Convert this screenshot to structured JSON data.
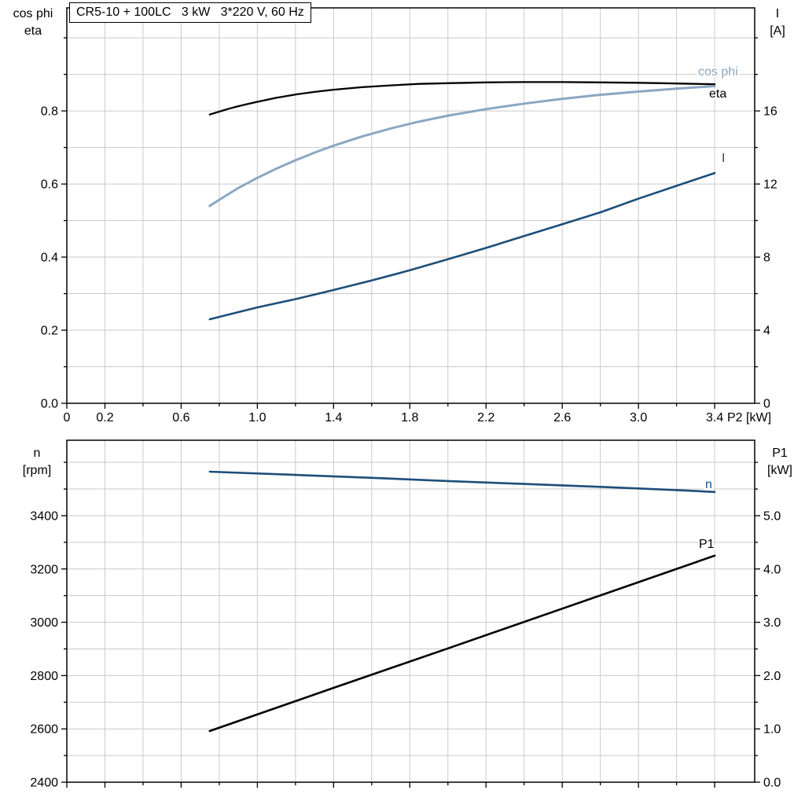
{
  "title_box": {
    "label": "CR5-10 + 100LC   3 kW   3*220 V, 60 Hz"
  },
  "colors": {
    "eta": "#000000",
    "cos_phi": "#8ba7c2",
    "current": "#1d4e79",
    "speed": "#1d4e79",
    "p1": "#000000",
    "grid": "#cacaca",
    "axis": "#000000"
  },
  "chart_data": [
    {
      "type": "line",
      "id": "electrical",
      "title": "CR5-10 + 100LC 3 kW 3*220 V, 60 Hz",
      "x_axis": {
        "label": "P2 [kW]",
        "range": [
          0,
          3.61
        ],
        "minor_step": 0.2,
        "show_labels": true,
        "ticks": [
          {
            "v": 0,
            "t": "0"
          },
          {
            "v": 0.2,
            "t": "0.2"
          },
          {
            "v": 0.6,
            "t": "0.6"
          },
          {
            "v": 1.0,
            "t": "1.0"
          },
          {
            "v": 1.4,
            "t": "1.4"
          },
          {
            "v": 1.8,
            "t": "1.8"
          },
          {
            "v": 2.2,
            "t": "2.2"
          },
          {
            "v": 2.6,
            "t": "2.6"
          },
          {
            "v": 3.0,
            "t": "3.0"
          },
          {
            "v": 3.4,
            "t": "3.4"
          }
        ]
      },
      "y_left": {
        "title_lines": [
          "cos phi",
          "eta"
        ],
        "range": [
          0,
          1.082
        ],
        "minor_step": 0.1,
        "ticks": [
          {
            "v": 0.0,
            "t": "0.0"
          },
          {
            "v": 0.2,
            "t": "0.2"
          },
          {
            "v": 0.4,
            "t": "0.4"
          },
          {
            "v": 0.6,
            "t": "0.6"
          },
          {
            "v": 0.8,
            "t": "0.8"
          }
        ]
      },
      "y_right": {
        "title_lines": [
          "I",
          "[A]"
        ],
        "range": [
          0,
          21.64
        ],
        "minor_step": 2,
        "ticks": [
          {
            "v": 0,
            "t": "0"
          },
          {
            "v": 4,
            "t": "4"
          },
          {
            "v": 8,
            "t": "8"
          },
          {
            "v": 12,
            "t": "12"
          },
          {
            "v": 16,
            "t": "16"
          }
        ]
      },
      "series": [
        {
          "name": "eta",
          "axis": "left",
          "color": "#000000",
          "width": 2.3,
          "label": {
            "text": "eta",
            "x": 902,
            "y": 124,
            "color": "#000000"
          },
          "points": [
            [
              0.75,
              0.79
            ],
            [
              0.8,
              0.798
            ],
            [
              0.85,
              0.806
            ],
            [
              0.9,
              0.813
            ],
            [
              0.95,
              0.819
            ],
            [
              1.0,
              0.825
            ],
            [
              1.1,
              0.836
            ],
            [
              1.2,
              0.845
            ],
            [
              1.3,
              0.852
            ],
            [
              1.4,
              0.858
            ],
            [
              1.55,
              0.865
            ],
            [
              1.7,
              0.87
            ],
            [
              1.85,
              0.874
            ],
            [
              2.0,
              0.876
            ],
            [
              2.2,
              0.878
            ],
            [
              2.4,
              0.879
            ],
            [
              2.6,
              0.879
            ],
            [
              2.8,
              0.878
            ],
            [
              3.0,
              0.877
            ],
            [
              3.2,
              0.875
            ],
            [
              3.4,
              0.873
            ]
          ]
        },
        {
          "name": "cos phi",
          "axis": "left",
          "color": "#8ba7c2",
          "width": 3,
          "label": {
            "text": "cos phi",
            "x": 888,
            "y": 96,
            "color": "#8ba7c2"
          },
          "points": [
            [
              0.75,
              0.54
            ],
            [
              0.8,
              0.557
            ],
            [
              0.85,
              0.573
            ],
            [
              0.9,
              0.589
            ],
            [
              0.95,
              0.603
            ],
            [
              1.0,
              0.617
            ],
            [
              1.1,
              0.642
            ],
            [
              1.2,
              0.665
            ],
            [
              1.3,
              0.686
            ],
            [
              1.4,
              0.705
            ],
            [
              1.55,
              0.73
            ],
            [
              1.7,
              0.752
            ],
            [
              1.85,
              0.771
            ],
            [
              2.0,
              0.787
            ],
            [
              2.2,
              0.805
            ],
            [
              2.4,
              0.82
            ],
            [
              2.6,
              0.833
            ],
            [
              2.8,
              0.844
            ],
            [
              3.0,
              0.853
            ],
            [
              3.2,
              0.861
            ],
            [
              3.4,
              0.868
            ]
          ]
        },
        {
          "name": "I",
          "axis": "right",
          "color": "#1d4e79",
          "width": 2.6,
          "label": {
            "text": "I",
            "x": 918,
            "y": 206,
            "color": "#1d4e79"
          },
          "points": [
            [
              0.75,
              4.6
            ],
            [
              1.0,
              5.25
            ],
            [
              1.2,
              5.7
            ],
            [
              1.4,
              6.2
            ],
            [
              1.6,
              6.72
            ],
            [
              1.8,
              7.28
            ],
            [
              2.0,
              7.88
            ],
            [
              2.2,
              8.5
            ],
            [
              2.4,
              9.15
            ],
            [
              2.6,
              9.8
            ],
            [
              2.8,
              10.45
            ],
            [
              3.0,
              11.2
            ],
            [
              3.2,
              11.9
            ],
            [
              3.4,
              12.6
            ]
          ]
        }
      ]
    },
    {
      "type": "line",
      "id": "mechanical",
      "title": "",
      "x_axis": {
        "label": "",
        "range": [
          0,
          3.61
        ],
        "minor_step": 0.2,
        "show_labels": false,
        "ticks": [
          {
            "v": 0
          },
          {
            "v": 0.2
          },
          {
            "v": 0.6
          },
          {
            "v": 1.0
          },
          {
            "v": 1.4
          },
          {
            "v": 1.8
          },
          {
            "v": 2.2
          },
          {
            "v": 2.6
          },
          {
            "v": 3.0
          },
          {
            "v": 3.4
          }
        ]
      },
      "y_left": {
        "title_lines": [
          "n",
          "[rpm]"
        ],
        "range": [
          2400,
          3683
        ],
        "minor_step": 100,
        "ticks": [
          {
            "v": 2400,
            "t": "2400"
          },
          {
            "v": 2600,
            "t": "2600"
          },
          {
            "v": 2800,
            "t": "2800"
          },
          {
            "v": 3000,
            "t": "3000"
          },
          {
            "v": 3200,
            "t": "3200"
          },
          {
            "v": 3400,
            "t": "3400"
          }
        ]
      },
      "y_right": {
        "title_lines": [
          "P1",
          "[kW]"
        ],
        "range": [
          0,
          6.415
        ],
        "minor_step": 0.5,
        "ticks": [
          {
            "v": 0,
            "t": "0.0"
          },
          {
            "v": 1,
            "t": "1.0"
          },
          {
            "v": 2,
            "t": "2.0"
          },
          {
            "v": 3,
            "t": "3.0"
          },
          {
            "v": 4,
            "t": "4.0"
          },
          {
            "v": 5,
            "t": "5.0"
          }
        ]
      },
      "series": [
        {
          "name": "n",
          "axis": "left",
          "color": "#1d4e79",
          "width": 2.6,
          "label": {
            "text": "n",
            "x": 897,
            "y": 621,
            "color": "#1d4e79"
          },
          "points": [
            [
              0.75,
              3565
            ],
            [
              1.2,
              3553
            ],
            [
              1.6,
              3542
            ],
            [
              2.0,
              3530
            ],
            [
              2.4,
              3519
            ],
            [
              2.8,
              3508
            ],
            [
              3.2,
              3496
            ],
            [
              3.4,
              3489
            ]
          ]
        },
        {
          "name": "P1",
          "axis": "right",
          "color": "#000000",
          "width": 2.6,
          "label": {
            "text": "P1",
            "x": 889,
            "y": 697,
            "color": "#000000"
          },
          "points": [
            [
              0.75,
              0.96
            ],
            [
              1.4,
              1.77
            ],
            [
              2.0,
              2.51
            ],
            [
              2.7,
              3.38
            ],
            [
              3.4,
              4.25
            ]
          ]
        }
      ]
    }
  ]
}
